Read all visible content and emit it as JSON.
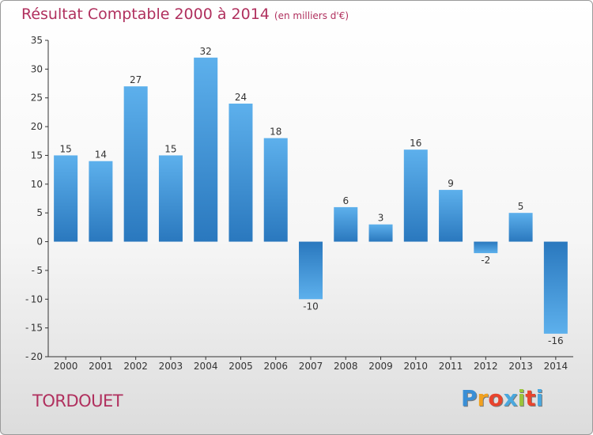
{
  "title": "Résultat Comptable 2000 à 2014",
  "subtitle": "(en milliers d'€)",
  "commune": "TORDOUET",
  "brand": {
    "letters": [
      "P",
      "r",
      "o",
      "x",
      "i",
      "t",
      "i"
    ],
    "colors": [
      "#3a8fd6",
      "#f2a11f",
      "#e8442d",
      "#4aa8de",
      "#9bc43a",
      "#e8442d",
      "#4aa8de"
    ]
  },
  "colors": {
    "title": "#b0305e",
    "bar": "#4a9ee2",
    "bar_dark": "#2a78be"
  },
  "chart_data": {
    "type": "bar",
    "title": "Résultat Comptable 2000 à 2014",
    "xlabel": "",
    "ylabel": "",
    "categories": [
      "2000",
      "2001",
      "2002",
      "2003",
      "2004",
      "2005",
      "2006",
      "2007",
      "2008",
      "2009",
      "2010",
      "2011",
      "2012",
      "2013",
      "2014"
    ],
    "values": [
      15,
      14,
      27,
      15,
      32,
      24,
      18,
      -10,
      6,
      3,
      16,
      9,
      -2,
      5,
      -16
    ],
    "ylim": [
      -20,
      35
    ],
    "yticks": [
      -20,
      -15,
      -10,
      -5,
      0,
      5,
      10,
      15,
      20,
      25,
      30,
      35
    ],
    "grid": false,
    "legend": "none"
  }
}
